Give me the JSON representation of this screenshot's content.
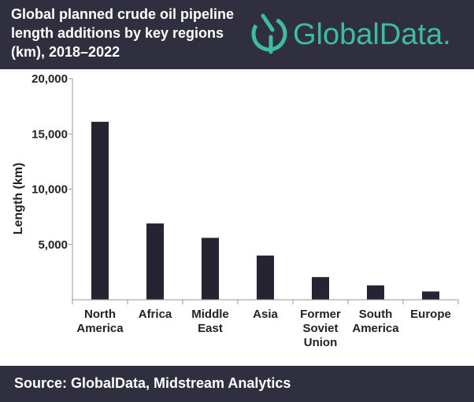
{
  "header": {
    "title": "Global planned crude oil pipeline length additions by key regions (km), 2018–2022",
    "logo_text": "GlobalData."
  },
  "footer": {
    "source": "Source: GlobalData, Midstream Analytics"
  },
  "colors": {
    "header_bg": "#302f40",
    "bar": "#262433",
    "logo_green": "#3dbd9a"
  },
  "icons": {
    "logo": "globaldata-logo-icon"
  },
  "chart_data": {
    "type": "bar",
    "title": "Global planned crude oil pipeline length additions by key regions (km), 2018–2022",
    "ylabel": "Length (km)",
    "xlabel": "",
    "categories": [
      [
        "North",
        "America"
      ],
      [
        "Africa"
      ],
      [
        "Middle",
        "East"
      ],
      [
        "Asia"
      ],
      [
        "Former",
        "Soviet",
        "Union"
      ],
      [
        "South",
        "America"
      ],
      [
        "Europe"
      ]
    ],
    "values": [
      16100,
      6900,
      5600,
      4000,
      2050,
      1300,
      750
    ],
    "ylim": [
      0,
      20000
    ],
    "yticks": [
      5000,
      10000,
      15000,
      20000
    ],
    "ytick_labels": [
      "5,000",
      "10,000",
      "15,000",
      "20,000"
    ],
    "grid": false,
    "legend": "none"
  }
}
